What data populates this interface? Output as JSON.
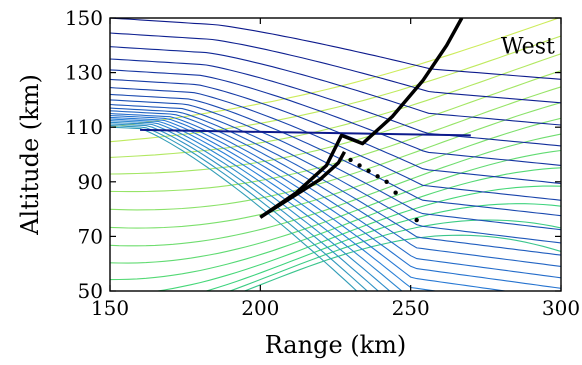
{
  "chart_data": {
    "type": "line",
    "title": "",
    "xlabel": "Range (km)",
    "ylabel": "Altitude (km)",
    "xlim": [
      150,
      300
    ],
    "ylim": [
      50,
      150
    ],
    "xticks": [
      150,
      200,
      250,
      300
    ],
    "yticks": [
      50,
      70,
      90,
      110,
      130,
      150
    ],
    "grid": false,
    "legend": "none",
    "annotations": [
      {
        "text": "West",
        "x": 280,
        "y": 140
      }
    ],
    "colors": {
      "ray_high": "#0d1a8c",
      "ray_mid": "#2a7fd8",
      "ray_low_green": "#3fd67a",
      "ray_low_yellow": "#e6f055",
      "caustic": "#000000"
    },
    "rays": {
      "start_x": 150,
      "start_altitudes": [
        110,
        110.6,
        111.2,
        111.8,
        112.4,
        113,
        113.6,
        114.3,
        115,
        116,
        117,
        118.3,
        120,
        122,
        124.5,
        127.5,
        131,
        135,
        139.5,
        144.5,
        150
      ],
      "bend_points": {
        "range_km": [
          170,
          185,
          200,
          215,
          230,
          245,
          260
        ],
        "altitude_km": [
          108,
          96,
          78,
          70,
          62,
          55,
          50
        ]
      }
    },
    "reflection_line": {
      "x": [
        160,
        270
      ],
      "y": [
        109,
        107
      ]
    },
    "caustic_curve": {
      "upper_branch": {
        "x": [
          200,
          212,
          222,
          227,
          234,
          244,
          254,
          262,
          267
        ],
        "y": [
          77,
          86,
          96,
          107,
          104,
          114,
          127,
          140,
          150
        ]
      },
      "lower_branch": {
        "x": [
          200,
          210,
          220,
          226,
          228
        ],
        "y": [
          77,
          84,
          91,
          97,
          101
        ]
      }
    },
    "dotted_points": {
      "x": [
        230,
        233,
        236,
        239,
        242,
        245,
        252
      ],
      "y": [
        98,
        96,
        94,
        92,
        90,
        86,
        76
      ]
    }
  }
}
